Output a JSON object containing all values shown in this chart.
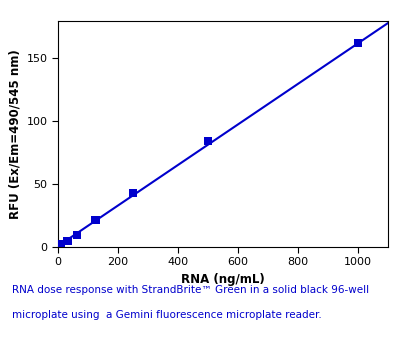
{
  "x_data": [
    10,
    31.25,
    62.5,
    125,
    250,
    500,
    1000
  ],
  "y_data": [
    2.0,
    4.5,
    9.5,
    21.0,
    43.0,
    84.0,
    162.0
  ],
  "line_x": [
    0,
    1100
  ],
  "line_slope": 0.1615,
  "line_intercept": 0.5,
  "marker_color": "#0000cc",
  "line_color": "#0000cc",
  "marker": "s",
  "marker_size": 6,
  "xlabel": "RNA (ng/mL)",
  "ylabel": "RFU (Ex/Em=490/545 nm)",
  "xlim": [
    0,
    1100
  ],
  "ylim": [
    0,
    180
  ],
  "xticks": [
    0,
    200,
    400,
    600,
    800,
    1000
  ],
  "yticks": [
    0,
    50,
    100,
    150
  ],
  "caption_line1": "RNA dose response with StrandBrite™ Green in a solid black 96-well",
  "caption_line2": "microplate using  a Gemini fluorescence microplate reader.",
  "caption_color": "#0000cc",
  "caption_fontsize": 7.5,
  "axis_label_fontsize": 8.5,
  "tick_fontsize": 8.0
}
